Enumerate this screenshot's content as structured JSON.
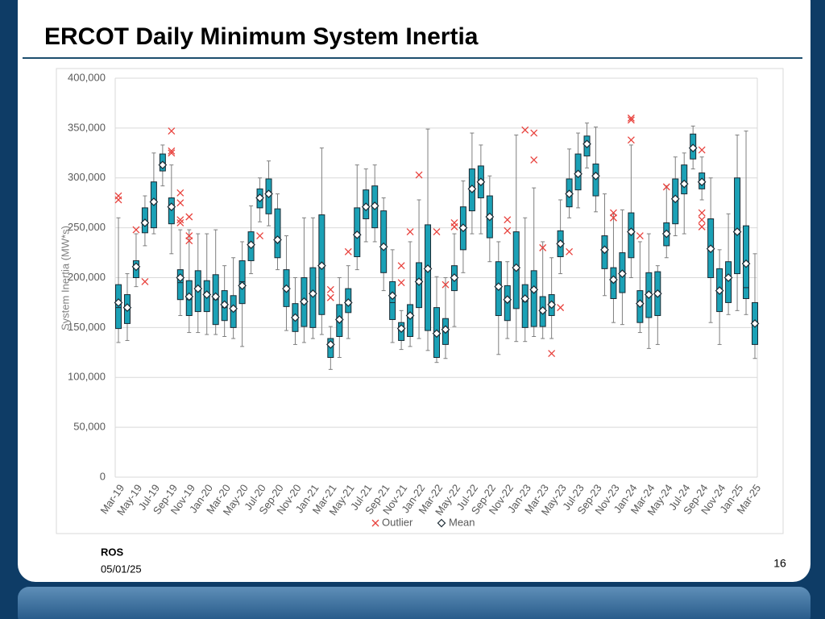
{
  "slide": {
    "title": "ERCOT Daily Minimum System Inertia",
    "footer_org": "ROS",
    "footer_date": "05/01/25",
    "page_number": "16"
  },
  "chart_data": {
    "type": "box",
    "y_label": "System Inertia (MW*s)",
    "ylim": [
      0,
      400000
    ],
    "yticks": [
      0,
      {
        "value": 50000,
        "label": "50,000"
      },
      {
        "value": 100000,
        "label": "100,000"
      },
      {
        "value": 150000,
        "label": "150,000"
      },
      {
        "value": 200000,
        "label": "200,000"
      },
      {
        "value": 250000,
        "label": "250,000"
      },
      {
        "value": 300000,
        "label": "300,000"
      },
      {
        "value": 350000,
        "label": "350,000"
      },
      {
        "value": 400000,
        "label": "400,000"
      }
    ],
    "grid": true,
    "box_color": "#1ba1b6",
    "outlier_color": "#e8413c",
    "outlier_name": "Outlier",
    "mean_name": "Mean",
    "categories": [
      "Mar-19",
      null,
      "May-19",
      null,
      "Jul-19",
      null,
      "Sep-19",
      null,
      "Nov-19",
      null,
      "Jan-20",
      null,
      "Mar-20",
      null,
      "May-20",
      null,
      "Jul-20",
      null,
      "Sep-20",
      null,
      "Nov-20",
      null,
      "Jan-21",
      null,
      "Mar-21",
      null,
      "May-21",
      null,
      "Jul-21",
      null,
      "Sep-21",
      null,
      "Nov-21",
      null,
      "Jan-22",
      null,
      "Mar-22",
      null,
      "May-22",
      null,
      "Jul-22",
      null,
      "Sep-22",
      null,
      "Nov-22",
      null,
      "Jan-23",
      null,
      "Mar-23",
      null,
      "May-23",
      null,
      "Jul-23",
      null,
      "Sep-23",
      null,
      "Nov-23",
      null,
      "Jan-24",
      null,
      "Mar-24",
      null,
      "May-24",
      null,
      "Jul-24",
      null,
      "Sep-24",
      null,
      "Nov-24",
      null,
      "Jan-25",
      null,
      "Mar-25"
    ],
    "min": [
      135000,
      137000,
      191000,
      232000,
      244000,
      292000,
      224000,
      162000,
      145000,
      145000,
      143000,
      143000,
      141000,
      139000,
      131000,
      204000,
      256000,
      252000,
      208000,
      147000,
      133000,
      135000,
      139000,
      143000,
      108000,
      120000,
      139000,
      208000,
      236000,
      236000,
      187000,
      135000,
      128000,
      131000,
      139000,
      127000,
      115000,
      119000,
      151000,
      205000,
      244000,
      244000,
      216000,
      123000,
      139000,
      136000,
      136000,
      141000,
      139000,
      139000,
      204000,
      260000,
      270000,
      310000,
      266000,
      182000,
      155000,
      153000,
      200000,
      145000,
      129000,
      133000,
      220000,
      242000,
      244000,
      309000,
      278000,
      155000,
      133000,
      163000,
      167000,
      163000,
      119000
    ],
    "q1": [
      149000,
      154000,
      200000,
      245000,
      250000,
      307000,
      254000,
      178000,
      162000,
      166000,
      166000,
      153000,
      157000,
      150000,
      174000,
      217000,
      270000,
      264000,
      220000,
      171000,
      146000,
      151000,
      150000,
      163000,
      120000,
      141000,
      165000,
      221000,
      259000,
      250000,
      205000,
      158000,
      137000,
      141000,
      170000,
      147000,
      120000,
      133000,
      187000,
      228000,
      267000,
      280000,
      240000,
      162000,
      157000,
      169000,
      150000,
      151000,
      151000,
      162000,
      221000,
      271000,
      288000,
      322000,
      282000,
      209000,
      179000,
      185000,
      220000,
      155000,
      160000,
      162000,
      232000,
      254000,
      284000,
      319000,
      289000,
      200000,
      166000,
      175000,
      204000,
      179000,
      133000
    ],
    "median": [
      170000,
      168000,
      211000,
      255000,
      276000,
      315000,
      270000,
      195000,
      178000,
      188000,
      183000,
      178000,
      170000,
      167000,
      196000,
      232000,
      282000,
      286000,
      240000,
      190000,
      160000,
      175000,
      185000,
      210000,
      132000,
      158000,
      175000,
      243000,
      270000,
      272000,
      230000,
      175000,
      150000,
      160000,
      196000,
      210000,
      143000,
      148000,
      200000,
      250000,
      290000,
      297000,
      262000,
      190000,
      176000,
      208000,
      176000,
      190000,
      165000,
      172000,
      234000,
      285000,
      305000,
      335000,
      303000,
      228000,
      196000,
      205000,
      246000,
      173000,
      182000,
      186000,
      244000,
      278000,
      294000,
      331000,
      296000,
      228000,
      187000,
      200000,
      244000,
      190000,
      154000
    ],
    "q3": [
      193000,
      183000,
      217000,
      270000,
      296000,
      324000,
      280000,
      208000,
      197000,
      207000,
      197000,
      203000,
      187000,
      182000,
      217000,
      246000,
      289000,
      299000,
      269000,
      208000,
      174000,
      200000,
      210000,
      263000,
      139000,
      173000,
      189000,
      270000,
      288000,
      292000,
      267000,
      196000,
      155000,
      173000,
      215000,
      253000,
      170000,
      159000,
      212000,
      271000,
      309000,
      312000,
      282000,
      216000,
      192000,
      246000,
      193000,
      207000,
      181000,
      183000,
      247000,
      299000,
      324000,
      342000,
      314000,
      242000,
      210000,
      225000,
      265000,
      187000,
      205000,
      206000,
      255000,
      299000,
      313000,
      344000,
      305000,
      259000,
      209000,
      216000,
      300000,
      252000,
      175000
    ],
    "max": [
      260000,
      204000,
      244000,
      282000,
      325000,
      333000,
      313000,
      248000,
      248000,
      244000,
      244000,
      248000,
      212000,
      220000,
      236000,
      272000,
      300000,
      317000,
      284000,
      242000,
      200000,
      260000,
      260000,
      330000,
      151000,
      200000,
      212000,
      313000,
      309000,
      313000,
      280000,
      228000,
      167000,
      236000,
      278000,
      349000,
      201000,
      200000,
      244000,
      297000,
      345000,
      333000,
      302000,
      236000,
      216000,
      343000,
      260000,
      290000,
      236000,
      220000,
      278000,
      329000,
      345000,
      355000,
      351000,
      284000,
      264000,
      268000,
      333000,
      236000,
      244000,
      212000,
      292000,
      321000,
      325000,
      352000,
      321000,
      300000,
      228000,
      264000,
      343000,
      347000,
      224000
    ],
    "mean": [
      175000,
      170000,
      211000,
      255000,
      276000,
      313000,
      271000,
      200000,
      181000,
      189000,
      183000,
      181000,
      173000,
      169000,
      192000,
      233000,
      280000,
      284000,
      238000,
      189000,
      160000,
      176000,
      184000,
      212000,
      133000,
      158000,
      175000,
      243000,
      271000,
      272000,
      231000,
      182000,
      149000,
      162000,
      196000,
      209000,
      144000,
      148000,
      200000,
      250000,
      289000,
      296000,
      261000,
      191000,
      178000,
      210000,
      179000,
      188000,
      167000,
      173000,
      234000,
      284000,
      304000,
      334000,
      302000,
      228000,
      198000,
      204000,
      246000,
      174000,
      183000,
      184000,
      244000,
      279000,
      294000,
      330000,
      296000,
      229000,
      187000,
      200000,
      246000,
      214000,
      154000
    ],
    "outliers": [
      [
        282000,
        278000
      ],
      [],
      [
        248000
      ],
      [
        196000
      ],
      [],
      [],
      [
        347000,
        327000,
        325000
      ],
      [
        285000,
        275000,
        258000,
        255000
      ],
      [
        261000,
        242000,
        237000
      ],
      [],
      [],
      [],
      [],
      [],
      [],
      [],
      [
        242000
      ],
      [],
      [],
      [],
      [],
      [],
      [],
      [],
      [
        188000,
        180000
      ],
      [],
      [
        226000
      ],
      [],
      [],
      [],
      [],
      [],
      [
        212000,
        195000
      ],
      [
        246000
      ],
      [
        303000
      ],
      [],
      [
        246000
      ],
      [
        193000
      ],
      [
        255000,
        251000
      ],
      [],
      [],
      [],
      [],
      [],
      [
        258000,
        247000
      ],
      [],
      [
        348000
      ],
      [
        345000,
        318000
      ],
      [
        230000
      ],
      [
        124000
      ],
      [
        170000
      ],
      [
        226000
      ],
      [],
      [],
      [],
      [],
      [
        265000,
        260000
      ],
      [],
      [
        360000,
        358000,
        338000
      ],
      [
        242000
      ],
      [],
      [],
      [
        291000
      ],
      [],
      [],
      [],
      [
        328000,
        265000,
        258000,
        251000
      ],
      [],
      [],
      [],
      [],
      [],
      []
    ]
  }
}
